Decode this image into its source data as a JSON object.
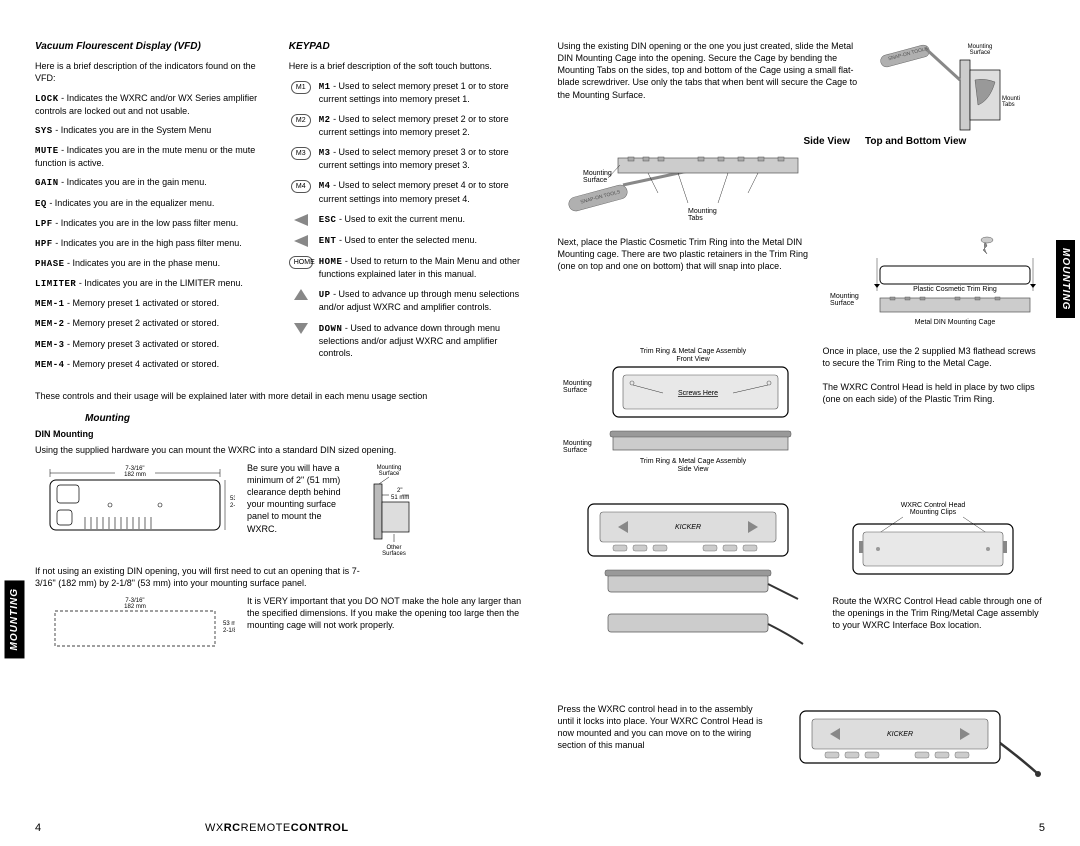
{
  "leftPage": {
    "vfd": {
      "title": "Vacuum Flourescent Display (VFD)",
      "intro": "Here is a brief description of the indicators found on the VFD:",
      "items": [
        {
          "label": "LOCK",
          "desc": " - Indicates the WXRC and/or WX Series amplifier controls are locked out and not usable."
        },
        {
          "label": "SYS",
          "desc": " - Indicates you are in the System Menu"
        },
        {
          "label": "MUTE",
          "desc": " - Indicates you are in the mute menu or the mute function is active."
        },
        {
          "label": "GAIN",
          "desc": " - Indicates you are in the gain menu."
        },
        {
          "label": "EQ",
          "desc": " - Indicates you are in the equalizer menu."
        },
        {
          "label": "LPF",
          "desc": " - Indicates you are in the low pass filter menu."
        },
        {
          "label": "HPF",
          "desc": " - Indicates you are in the high pass filter menu."
        },
        {
          "label": "PHASE",
          "desc": " - Indicates you are in the phase menu."
        },
        {
          "label": "LIMITER",
          "desc": " - Indicates you are in the LIMITER menu."
        },
        {
          "label": "MEM-1",
          "desc": " - Memory preset 1 activated or stored."
        },
        {
          "label": "MEM-2",
          "desc": " - Memory preset 2 activated or stored."
        },
        {
          "label": "MEM-3",
          "desc": " - Memory preset 3 activated or stored."
        },
        {
          "label": "MEM-4",
          "desc": " - Memory preset 4 activated or stored."
        }
      ]
    },
    "keypad": {
      "title": "KEYPAD",
      "intro": "Here is a brief description of the soft touch buttons.",
      "items": [
        {
          "icon": "M1",
          "label": "M1",
          "desc": " - Used to select memory preset 1 or to store current settings into memory preset 1."
        },
        {
          "icon": "M2",
          "label": "M2",
          "desc": " - Used to select memory preset 2 or to store current settings into memory preset 2."
        },
        {
          "icon": "M3",
          "label": "M3",
          "desc": " - Used to select memory preset 3 or to store current settings into memory preset 3."
        },
        {
          "icon": "M4",
          "label": "M4",
          "desc": " - Used to select memory preset 4 or to store current settings into memory preset 4."
        },
        {
          "icon": "ESC",
          "label": "ESC",
          "desc": " - Used to exit the current menu."
        },
        {
          "icon": "ENT",
          "label": "ENT",
          "desc": " - Used to enter the selected menu."
        },
        {
          "icon": "HOME",
          "label": "HOME",
          "desc": " - Used to return to the Main Menu and other functions explained later in this manual."
        },
        {
          "icon": "UP",
          "label": "UP",
          "desc": " - Used to advance up through menu selections and/or adjust WXRC and amplifier controls."
        },
        {
          "icon": "DOWN",
          "label": "DOWN",
          "desc": " - Used to advance down through menu selections and/or adjust WXRC and amplifier controls."
        }
      ]
    },
    "controlsNote": "These controls and their usage will be explained later with more detail in each menu usage section",
    "mounting": {
      "title": "Mounting",
      "dinTitle": "DIN Mounting",
      "para1": "Using the supplied hardware you can mount the WXRC into a standard DIN sized opening.",
      "clearanceText": "Be sure you will have a minimum of 2\" (51 mm) clearance depth behind your mounting surface panel to mount the WXRC.",
      "para2": "If not using an existing DIN opening, you will first need to cut an opening that is 7-3/16\" (182 mm) by 2-1/8\" (53 mm) into your mounting surface panel.",
      "important": "It is VERY important that you DO NOT make the hole any larger than the specified dimensions. If you make the opening too large then the mounting cage will not work properly.",
      "dim1": "7-3/16\"\n182 mm",
      "dim2": "53 mm\n2-1/8\"",
      "labelMountingSurface": "Mounting\nSurface",
      "labelOther": "Other\nSurfaces",
      "labelDepth": "2\"\n51 mm"
    },
    "sideTab": "MOUNTING",
    "pageNum": "4",
    "footerTitle1": "WX",
    "footerTitle2": "RC",
    "footerTitle3": "REMOTE",
    "footerTitle4": "CONTROL"
  },
  "rightPage": {
    "topText": "Using the existing DIN opening or the one you just created, slide the Metal DIN Mounting Cage into the opening. Secure the Cage by bending the Mounting Tabs on the sides, top and bottom of the Cage using a small flat-blade screwdriver. Use only the tabs that when bent will secure the Cage to the Mounting Surface.",
    "sideViewLabel": "Side View",
    "topBottomLabel": "Top and Bottom View",
    "labelMountingSurface": "Mounting\nSurface",
    "labelMountingTabs": "Mounting\nTabs",
    "trimRingText": "Next, place the Plastic Cosmetic Trim Ring into the Metal DIN Mounting cage. There are two plastic retainers in the Trim Ring (one on top and one on bottom) that will snap into place.",
    "labelPlasticTrim": "Plastic Cosmetic Trim Ring",
    "labelMetalCage": "Metal DIN Mounting Cage",
    "assemblyFront": "Trim Ring & Metal Cage Assembly\nFront View",
    "assemblySide": "Trim Ring & Metal Cage Assembly\nSide View",
    "screwsHere": "Screws Here",
    "onceInPlace": "Once in place, use the 2 supplied M3 flathead screws to secure the Trim Ring to the Metal Cage.",
    "heldInPlace": "The WXRC Control Head is held in place by two clips (one on each side) of the Plastic Trim Ring.",
    "wxrcClips": "WXRC Control Head\nMounting Clips",
    "routeCable": "Route the WXRC Control Head cable through one of the openings in the Trim Ring/Metal Cage assembly to your WXRC Interface Box location.",
    "pressHead": "Press the WXRC control head in to the assembly until it locks into place. Your WXRC Control Head is now mounted and you can move on to the wiring section of this manual",
    "sideTab": "MOUNTING",
    "pageNum": "5",
    "snapOn": "SNAP-ON TOOLS"
  },
  "colors": {
    "text": "#000000",
    "grey": "#888888",
    "lightGrey": "#cccccc",
    "darkGrey": "#555555"
  }
}
